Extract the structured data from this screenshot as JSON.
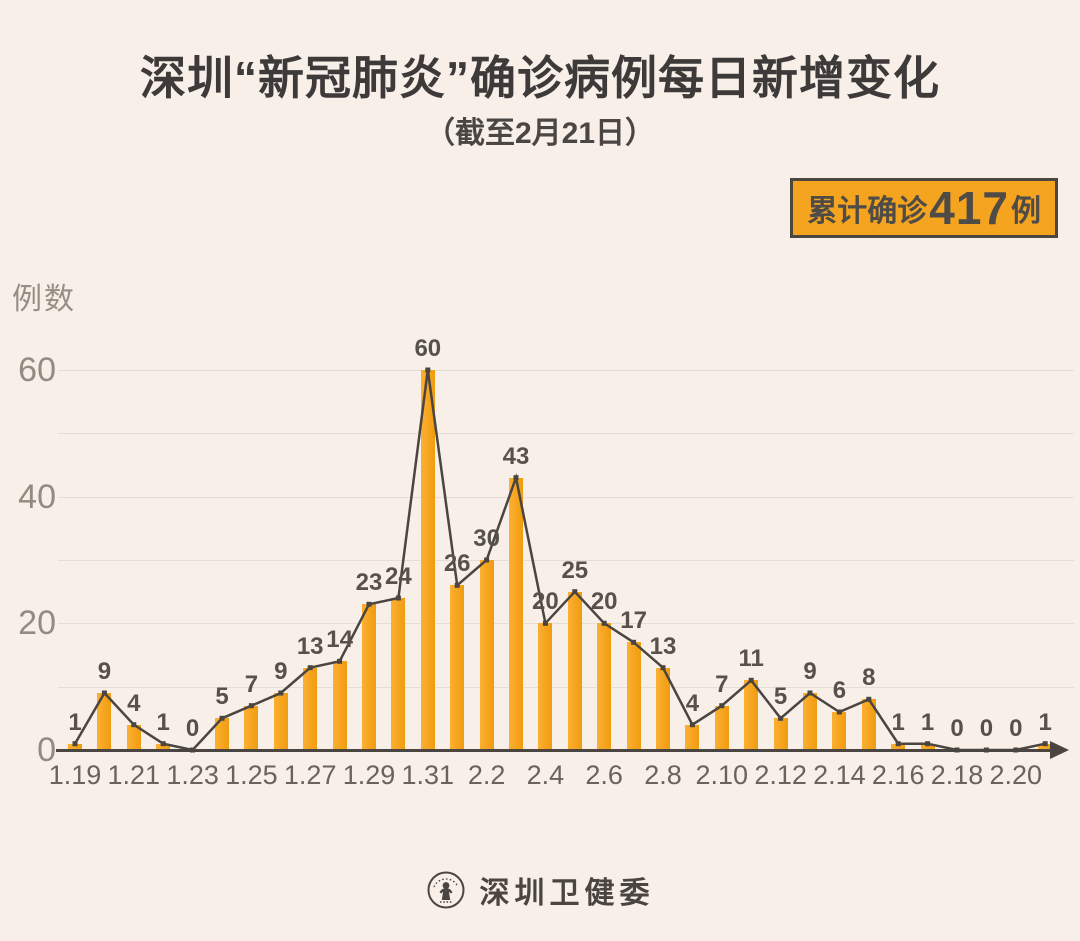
{
  "page": {
    "title": "深圳“新冠肺炎”确诊病例每日新增变化",
    "subtitle": "（截至2月21日）",
    "background_color": "#F7EFE8"
  },
  "badge": {
    "prefix": "累计确诊",
    "value": "417",
    "suffix": "例",
    "bg_color": "#F5A41F",
    "border_color": "#4B4642",
    "text_color": "#4F4B47"
  },
  "chart_data": {
    "type": "bar",
    "overlay": "line",
    "title": "深圳“新冠肺炎”确诊病例每日新增变化（截至2月21日）",
    "ylabel": "例数",
    "xlabel": "",
    "categories": [
      "1.19",
      "1.20",
      "1.21",
      "1.22",
      "1.23",
      "1.24",
      "1.25",
      "1.26",
      "1.27",
      "1.28",
      "1.29",
      "1.30",
      "1.31",
      "2.1",
      "2.2",
      "2.3",
      "2.4",
      "2.5",
      "2.6",
      "2.7",
      "2.8",
      "2.9",
      "2.10",
      "2.11",
      "2.12",
      "2.13",
      "2.14",
      "2.15",
      "2.16",
      "2.17",
      "2.18",
      "2.19",
      "2.20",
      "2.21"
    ],
    "values": [
      1,
      9,
      4,
      1,
      0,
      5,
      7,
      9,
      13,
      14,
      23,
      24,
      60,
      26,
      30,
      43,
      20,
      25,
      20,
      17,
      13,
      4,
      7,
      11,
      5,
      9,
      6,
      8,
      1,
      1,
      0,
      0,
      0,
      1
    ],
    "total": 417,
    "yticks": [
      0,
      20,
      40,
      60
    ],
    "ylim": [
      0,
      63
    ],
    "gridline_step": 10,
    "grid_on": true,
    "xtick_every": 2,
    "legend": "none",
    "bar_color": "#F6A41E",
    "line_color": "#4A4541",
    "value_label_color": "#57514C",
    "axis_arrow": "right"
  },
  "footer": {
    "logo_icon": "shenzhen-health-commission-seal",
    "text": "深圳卫健委"
  }
}
